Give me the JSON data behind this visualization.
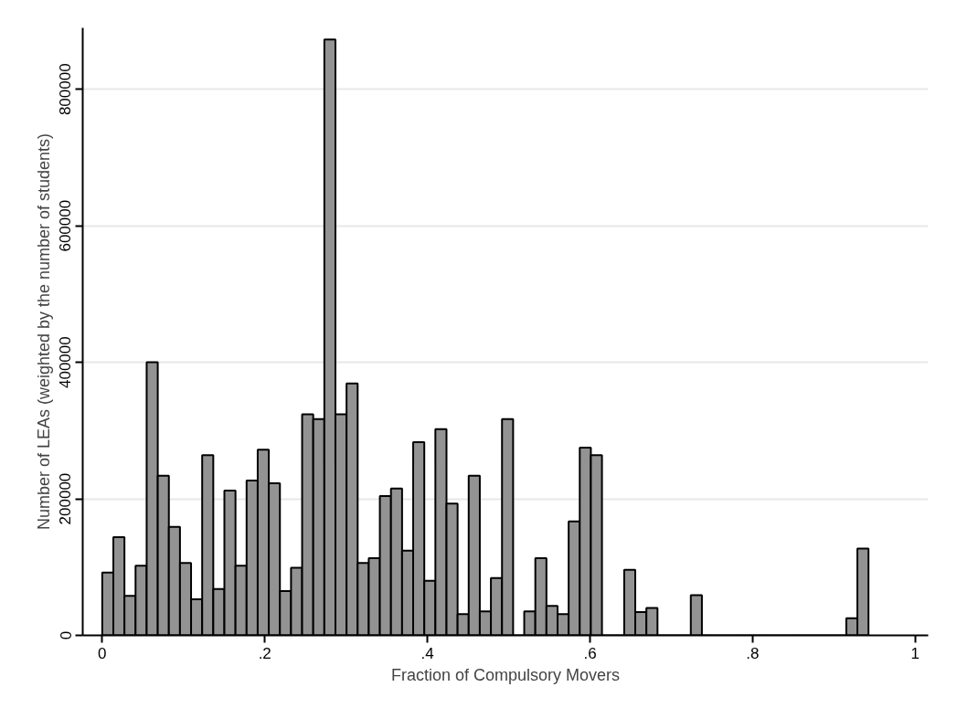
{
  "chart_data": {
    "type": "histogram",
    "xlabel": "Fraction of Compulsory Movers",
    "ylabel": "Number of LEAs (weighted by the number of students)",
    "bins": [
      0,
      0.01366,
      0.02732,
      0.04098,
      0.05464,
      0.0683,
      0.08196,
      0.09562,
      0.10928,
      0.12294,
      0.1366,
      0.15026,
      0.16392,
      0.17758,
      0.19124,
      0.2049,
      0.21856,
      0.23222,
      0.24588,
      0.25954,
      0.2732,
      0.28686,
      0.30052,
      0.31418,
      0.32784,
      0.3415,
      0.35516,
      0.36882,
      0.38248,
      0.39614,
      0.4098,
      0.42346,
      0.43712,
      0.45078,
      0.46444,
      0.4781,
      0.49176,
      0.50542,
      0.51908,
      0.53274,
      0.5464,
      0.56006,
      0.57372,
      0.58738,
      0.60104,
      0.6147,
      0.62836,
      0.64202,
      0.65568,
      0.66934,
      0.683,
      0.69666,
      0.71032,
      0.72398,
      0.73764,
      0.7513,
      0.76496,
      0.77862,
      0.79228,
      0.80594,
      0.8196,
      0.83326,
      0.84692,
      0.86058,
      0.87424,
      0.8879,
      0.90156,
      0.91522,
      0.92888,
      0.94254
    ],
    "values": [
      92000,
      144000,
      58000,
      102000,
      400000,
      234000,
      159000,
      106000,
      53000,
      264000,
      68000,
      212000,
      102000,
      227000,
      272000,
      223000,
      65000,
      99000,
      324000,
      317000,
      873000,
      324000,
      369000,
      106000,
      113000,
      204000,
      215000,
      124000,
      283000,
      80000,
      302000,
      193000,
      31000,
      234000,
      35000,
      84000,
      317000,
      0,
      35000,
      113000,
      43000,
      31000,
      167000,
      275000,
      264000,
      0,
      0,
      96000,
      34000,
      40000,
      0,
      0,
      0,
      59000,
      0,
      0,
      0,
      0,
      0,
      0,
      0,
      0,
      0,
      0,
      0,
      0,
      0,
      25000,
      127000
    ],
    "color": "#939393",
    "xlim": [
      -0.024,
      1.016
    ],
    "xticks": [
      0,
      {
        "value": 0.2,
        "label": ".2"
      },
      {
        "value": 0.4,
        "label": ".4"
      },
      {
        "value": 0.6,
        "label": ".6"
      },
      {
        "value": 0.8,
        "label": ".8"
      },
      1
    ],
    "ylim": [
      0,
      890000
    ],
    "yticks": [
      0,
      200000,
      400000,
      600000,
      800000
    ],
    "grid": "y"
  }
}
